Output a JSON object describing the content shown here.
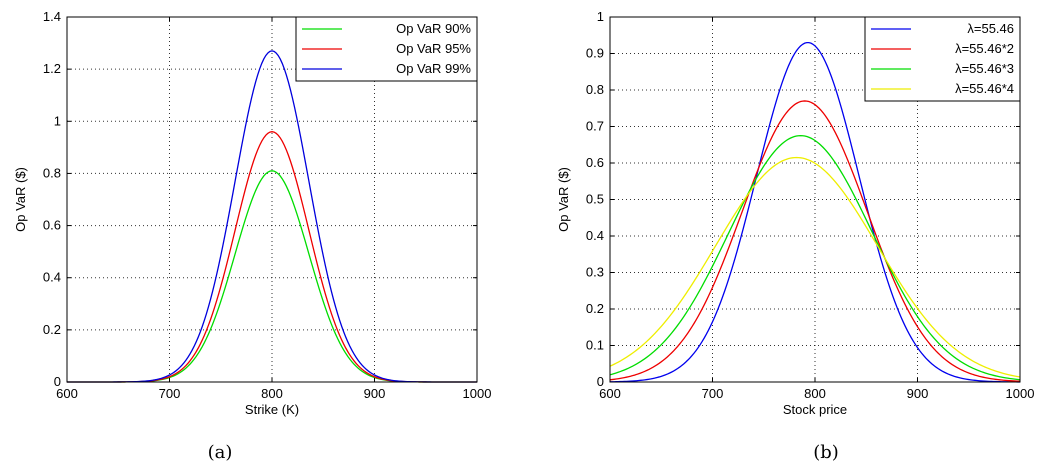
{
  "chart_data": [
    {
      "type": "line",
      "caption": "(a)",
      "xlabel": "Strike (K)",
      "ylabel": "Op VaR ($)",
      "xlim": [
        600,
        1000
      ],
      "ylim": [
        0,
        1.4
      ],
      "xticks": [
        600,
        700,
        800,
        900,
        1000
      ],
      "yticks": [
        0,
        0.2,
        0.4,
        0.6,
        0.8,
        1,
        1.2,
        1.4
      ],
      "grid": true,
      "legend_position": "top-right",
      "series": [
        {
          "name": "Op VaR 90%",
          "color": "#00dd00",
          "peak_x": 800,
          "peak_y": 0.81,
          "sigma": 36
        },
        {
          "name": "Op VaR 95%",
          "color": "#ee0000",
          "peak_x": 800,
          "peak_y": 0.96,
          "sigma": 36
        },
        {
          "name": "Op VaR 99%",
          "color": "#0000dd",
          "peak_x": 800,
          "peak_y": 1.27,
          "sigma": 36
        }
      ]
    },
    {
      "type": "line",
      "caption": "(b)",
      "xlabel": "Stock price",
      "ylabel": "Op VaR ($)",
      "xlim": [
        600,
        1000
      ],
      "ylim": [
        0,
        1
      ],
      "xticks": [
        600,
        700,
        800,
        900,
        1000
      ],
      "yticks": [
        0,
        0.1,
        0.2,
        0.3,
        0.4,
        0.5,
        0.6,
        0.7,
        0.8,
        0.9,
        1
      ],
      "grid": true,
      "legend_position": "top-right",
      "series": [
        {
          "name": "λ=55.46",
          "color": "#0000ee",
          "peak_x": 793,
          "peak_y": 0.93,
          "sigma": 50
        },
        {
          "name": "λ=55.46*2",
          "color": "#ee0000",
          "peak_x": 790,
          "peak_y": 0.77,
          "sigma": 61
        },
        {
          "name": "λ=55.46*3",
          "color": "#00dd00",
          "peak_x": 786,
          "peak_y": 0.675,
          "sigma": 70
        },
        {
          "name": "λ=55.46*4",
          "color": "#eeee00",
          "peak_x": 782,
          "peak_y": 0.615,
          "sigma": 79
        }
      ]
    }
  ]
}
